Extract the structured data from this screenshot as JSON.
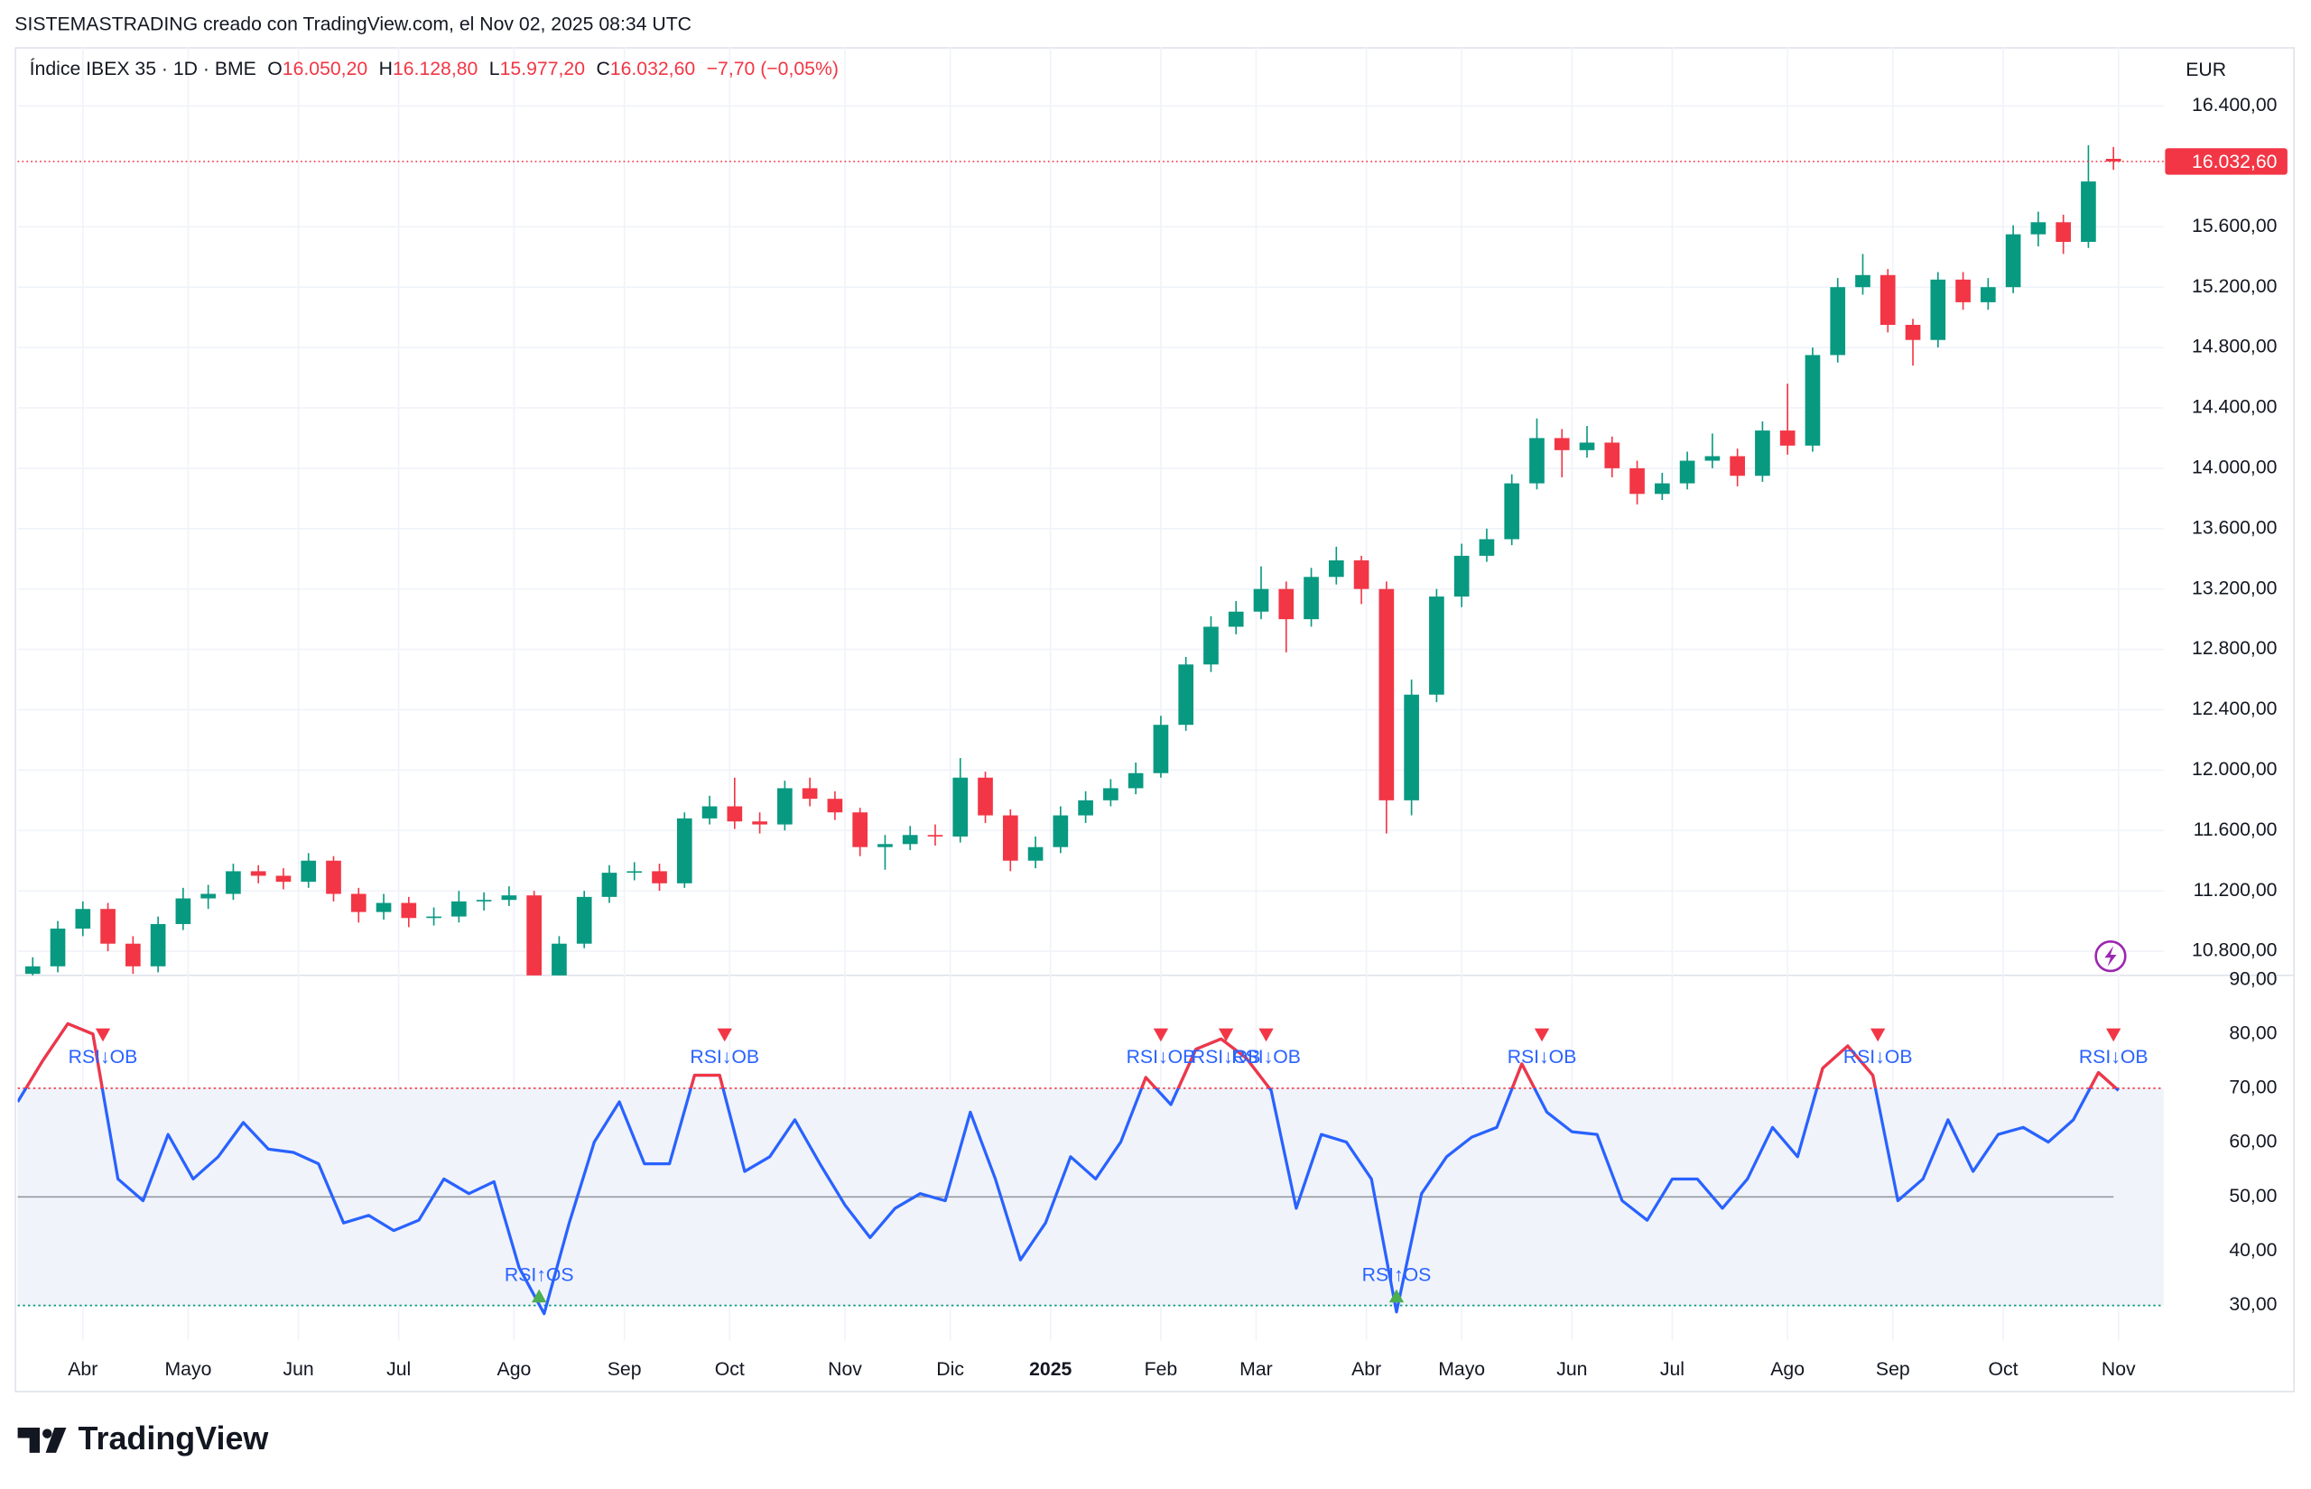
{
  "header": {
    "attribution": "SISTEMASTRADING creado con TradingView.com, el Nov 02, 2025 08:34 UTC",
    "symbol": "Índice IBEX 35 · 1D · BME",
    "ohlc": [
      {
        "key": "O",
        "label": "16.050,20"
      },
      {
        "key": "H",
        "label": "16.128,80"
      },
      {
        "key": "L",
        "label": "15.977,20"
      },
      {
        "key": "C",
        "label": "16.032,60"
      }
    ],
    "change": "−7,70 (−0,05%)"
  },
  "chart_data": [
    {
      "type": "candlestick",
      "currency": "EUR",
      "up_color": "#089981",
      "down_color": "#f23645",
      "xlim": [
        0,
        428
      ],
      "ylim": [
        10640,
        16790
      ],
      "yticks": [
        {
          "value": 16400,
          "label": "16.400,00"
        },
        {
          "value": 15600,
          "label": "15.600,00"
        },
        {
          "value": 15200,
          "label": "15.200,00"
        },
        {
          "value": 14800,
          "label": "14.800,00"
        },
        {
          "value": 14400,
          "label": "14.400,00"
        },
        {
          "value": 14000,
          "label": "14.000,00"
        },
        {
          "value": 13600,
          "label": "13.600,00"
        },
        {
          "value": 13200,
          "label": "13.200,00"
        },
        {
          "value": 12800,
          "label": "12.800,00"
        },
        {
          "value": 12400,
          "label": "12.400,00"
        },
        {
          "value": 12000,
          "label": "12.000,00"
        },
        {
          "value": 11600,
          "label": "11.600,00"
        },
        {
          "value": 11200,
          "label": "11.200,00"
        },
        {
          "value": 10800,
          "label": "10.800,00"
        }
      ],
      "grid": true,
      "last_price": {
        "value": 16032.6,
        "label": "16.032,60",
        "color": "#f23645"
      },
      "x": [
        3,
        8,
        13,
        18,
        23,
        28,
        33,
        38,
        43,
        48,
        53,
        58,
        63,
        68,
        73,
        78,
        83,
        88,
        93,
        98,
        103,
        108,
        113,
        118,
        123,
        128,
        133,
        138,
        143,
        148,
        153,
        158,
        163,
        168,
        173,
        178,
        183,
        188,
        193,
        198,
        203,
        208,
        213,
        218,
        223,
        228,
        233,
        238,
        243,
        248,
        253,
        258,
        263,
        268,
        273,
        278,
        283,
        288,
        293,
        298,
        303,
        308,
        313,
        318,
        323,
        328,
        333,
        338,
        343,
        348,
        353,
        358,
        363,
        368,
        373,
        378,
        383,
        388,
        393,
        398,
        403,
        408,
        413,
        418
      ],
      "open": [
        10650,
        10700,
        10950,
        11080,
        10850,
        10700,
        10980,
        11150,
        11180,
        11330,
        11300,
        11260,
        11400,
        11180,
        11060,
        11120,
        11020,
        11030,
        11130,
        11140,
        11170,
        10620,
        10850,
        11160,
        11320,
        11330,
        11250,
        11680,
        11760,
        11660,
        11640,
        11880,
        11810,
        11720,
        11490,
        11510,
        11570,
        11560,
        11950,
        11700,
        11400,
        11490,
        11700,
        11800,
        11880,
        11980,
        12300,
        12700,
        12950,
        13050,
        13200,
        13000,
        13280,
        13390,
        13200,
        11800,
        12500,
        13150,
        13420,
        13530,
        13900,
        14200,
        14120,
        14170,
        14000,
        13830,
        13900,
        14050,
        14080,
        13950,
        14250,
        14150,
        14750,
        15200,
        15280,
        14950,
        14850,
        15250,
        15100,
        15200,
        15550,
        15630,
        15500,
        16050.2
      ],
      "high": [
        10760,
        11000,
        11130,
        11120,
        10900,
        11030,
        11220,
        11240,
        11380,
        11370,
        11350,
        11450,
        11430,
        11220,
        11180,
        11160,
        11090,
        11200,
        11190,
        11230,
        11200,
        10900,
        11200,
        11370,
        11390,
        11380,
        11720,
        11830,
        11950,
        11720,
        11930,
        11950,
        11860,
        11750,
        11570,
        11630,
        11640,
        12080,
        11990,
        11740,
        11560,
        11760,
        11860,
        11940,
        12050,
        12360,
        12750,
        13020,
        13120,
        13350,
        13250,
        13340,
        13480,
        13420,
        13250,
        12600,
        13200,
        13500,
        13600,
        13960,
        14330,
        14260,
        14280,
        14210,
        14050,
        13970,
        14110,
        14230,
        14130,
        14310,
        14560,
        14800,
        15260,
        15420,
        15320,
        14990,
        15300,
        15300,
        15260,
        15610,
        15700,
        15680,
        16140,
        16128.8
      ],
      "low": [
        10600,
        10660,
        10900,
        10800,
        10650,
        10660,
        10940,
        11080,
        11140,
        11250,
        11210,
        11220,
        11130,
        10990,
        11010,
        10960,
        10970,
        10990,
        11070,
        11100,
        10580,
        10580,
        10820,
        11120,
        11270,
        11200,
        11220,
        11640,
        11610,
        11580,
        11600,
        11760,
        11670,
        11430,
        11340,
        11470,
        11500,
        11520,
        11650,
        11330,
        11350,
        11450,
        11650,
        11760,
        11840,
        11950,
        12260,
        12650,
        12900,
        13000,
        12780,
        12950,
        13230,
        13100,
        11580,
        11700,
        12450,
        13080,
        13380,
        13490,
        13860,
        13940,
        14070,
        13940,
        13760,
        13790,
        13860,
        14000,
        13880,
        13910,
        14090,
        14110,
        14700,
        15150,
        14900,
        14680,
        14800,
        15050,
        15050,
        15160,
        15470,
        15420,
        15460,
        15977.2
      ],
      "close": [
        10700,
        10950,
        11080,
        10850,
        10700,
        10980,
        11150,
        11180,
        11330,
        11300,
        11260,
        11400,
        11180,
        11060,
        11120,
        11020,
        11030,
        11130,
        11140,
        11170,
        10620,
        10850,
        11160,
        11320,
        11330,
        11250,
        11680,
        11760,
        11660,
        11640,
        11880,
        11810,
        11720,
        11490,
        11510,
        11570,
        11560,
        11950,
        11700,
        11400,
        11490,
        11700,
        11800,
        11880,
        11980,
        12300,
        12700,
        12950,
        13050,
        13200,
        13000,
        13280,
        13390,
        13200,
        11800,
        12500,
        13150,
        13420,
        13530,
        13900,
        14200,
        14120,
        14170,
        14000,
        13830,
        13900,
        14050,
        14080,
        13950,
        14250,
        14150,
        14750,
        15200,
        15280,
        14950,
        14850,
        15250,
        15100,
        15200,
        15550,
        15630,
        15500,
        15900,
        16032.6
      ]
    },
    {
      "type": "rsi",
      "color": "#2962ff",
      "overbought_color": "#f23645",
      "xlim": [
        0,
        428
      ],
      "ylim": [
        23.5,
        90.8
      ],
      "yticks": [
        {
          "value": 90,
          "label": "90,00"
        },
        {
          "value": 80,
          "label": "80,00"
        },
        {
          "value": 70,
          "label": "70,00"
        },
        {
          "value": 60,
          "label": "60,00"
        },
        {
          "value": 50,
          "label": "50,00"
        },
        {
          "value": 40,
          "label": "40,00"
        },
        {
          "value": 30,
          "label": "30,00"
        }
      ],
      "xticks": [
        {
          "value": 13,
          "label": "Abr"
        },
        {
          "value": 34,
          "label": "Mayo"
        },
        {
          "value": 56,
          "label": "Jun"
        },
        {
          "value": 76,
          "label": "Jul"
        },
        {
          "value": 99,
          "label": "Ago"
        },
        {
          "value": 121,
          "label": "Sep"
        },
        {
          "value": 142,
          "label": "Oct"
        },
        {
          "value": 165,
          "label": "Nov"
        },
        {
          "value": 186,
          "label": "Dic"
        },
        {
          "value": 206,
          "label": "2025",
          "bold": true
        },
        {
          "value": 228,
          "label": "Feb"
        },
        {
          "value": 247,
          "label": "Mar"
        },
        {
          "value": 269,
          "label": "Abr"
        },
        {
          "value": 288,
          "label": "Mayo"
        },
        {
          "value": 310,
          "label": "Jun"
        },
        {
          "value": 330,
          "label": "Jul"
        },
        {
          "value": 353,
          "label": "Ago"
        },
        {
          "value": 374,
          "label": "Sep"
        },
        {
          "value": 396,
          "label": "Oct"
        },
        {
          "value": 419,
          "label": "Nov"
        }
      ],
      "levels": [
        70,
        50,
        30
      ],
      "level_colors": [
        "#f23645",
        "#9598a1",
        "#089981"
      ],
      "level_styles": [
        "dotted",
        "solid",
        "dotted"
      ],
      "band_color": "#f0f3fa",
      "x": [
        0,
        5,
        10,
        15,
        20,
        25,
        30,
        35,
        40,
        45,
        50,
        55,
        60,
        65,
        70,
        75,
        80,
        85,
        90,
        95,
        100,
        105,
        110,
        115,
        120,
        125,
        130,
        135,
        140,
        145,
        150,
        155,
        160,
        165,
        170,
        175,
        180,
        185,
        190,
        195,
        200,
        205,
        210,
        215,
        220,
        225,
        230,
        235,
        240,
        245,
        250,
        255,
        260,
        265,
        270,
        275,
        280,
        285,
        290,
        295,
        300,
        305,
        310,
        315,
        320,
        325,
        330,
        335,
        340,
        345,
        350,
        355,
        360,
        365,
        370,
        375,
        380,
        385,
        390,
        395,
        400,
        405,
        410,
        415,
        419
      ],
      "values": [
        67.5,
        75.1,
        81.9,
        80,
        53.3,
        49.3,
        61.5,
        53.3,
        57.4,
        63.7,
        58.8,
        58.2,
        56.1,
        45.2,
        46.6,
        43.8,
        45.7,
        53.3,
        50.6,
        52.8,
        37,
        28.5,
        45.2,
        60.1,
        67.5,
        56.1,
        56.1,
        72.4,
        72.4,
        54.7,
        57.4,
        64.2,
        56.1,
        48.5,
        42.5,
        47.9,
        50.6,
        49.3,
        65.6,
        53.3,
        38.4,
        45.2,
        57.4,
        53.3,
        60.1,
        72,
        67,
        77.2,
        79.1,
        75.6,
        69.6,
        47.9,
        61.5,
        60.1,
        53.3,
        28.8,
        50.6,
        57.4,
        61,
        62.8,
        74.5,
        65.6,
        62,
        61.5,
        49.3,
        45.7,
        53.3,
        53.3,
        47.9,
        53.3,
        62.8,
        57.4,
        73.7,
        77.8,
        72.4,
        49.3,
        53.3,
        64.2,
        54.7,
        61.5,
        62.8,
        60.1,
        64.2,
        72.9,
        69.6
      ],
      "signal_down_color": "#f23645",
      "signal_up_color": "#4caf50",
      "signal_text_color": "#2962ff",
      "signals": [
        {
          "x": 17,
          "label": "RSI↓OB",
          "direction": "down"
        },
        {
          "x": 104,
          "label": "RSI↑OS",
          "direction": "up"
        },
        {
          "x": 141,
          "label": "RSI↓OB",
          "direction": "down"
        },
        {
          "x": 228,
          "label": "RSI↓OB",
          "direction": "down"
        },
        {
          "x": 241,
          "label": "RSI↓OB",
          "direction": "down"
        },
        {
          "x": 249,
          "label": "RSI↓OB",
          "direction": "down"
        },
        {
          "x": 275,
          "label": "RSI↑OS",
          "direction": "up"
        },
        {
          "x": 304,
          "label": "RSI↓OB",
          "direction": "down"
        },
        {
          "x": 371,
          "label": "RSI↓OB",
          "direction": "down"
        },
        {
          "x": 418,
          "label": "RSI↓OB",
          "direction": "down"
        }
      ]
    }
  ],
  "footer": {
    "brand": "TradingView"
  }
}
